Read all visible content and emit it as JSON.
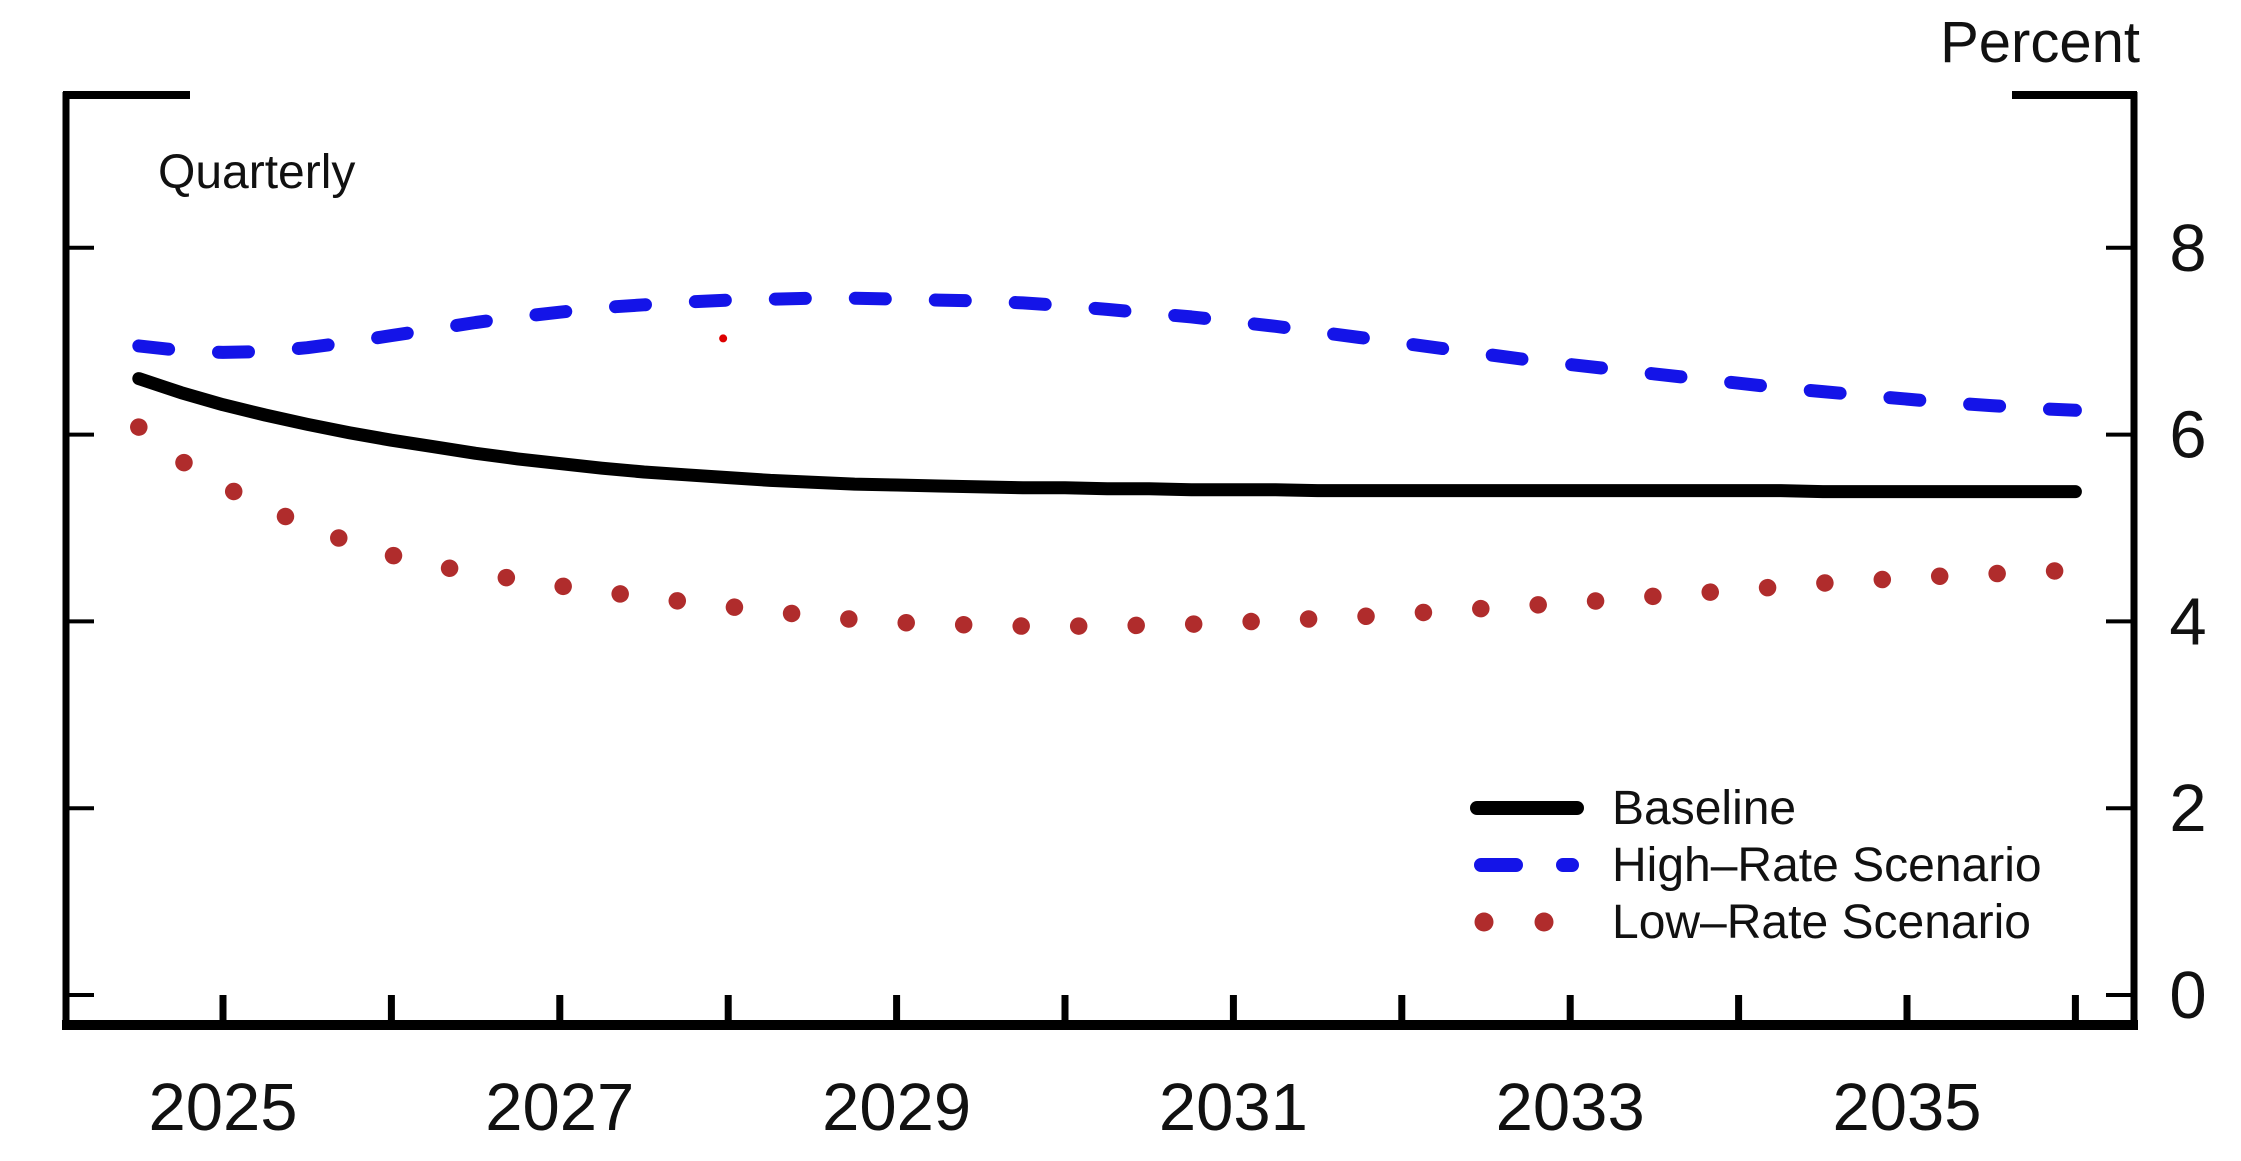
{
  "figure": {
    "unit_label": "Percent",
    "frequency_label": "Quarterly"
  },
  "legend": {
    "items": [
      {
        "label": "Baseline",
        "style": "solid",
        "color": "#000000"
      },
      {
        "label": "High–Rate Scenario",
        "style": "dashed",
        "color": "#1414e8"
      },
      {
        "label": "Low–Rate Scenario",
        "style": "dotted",
        "color": "#b02c2c"
      }
    ]
  },
  "colors": {
    "baseline": "#000000",
    "high_rate": "#1414e8",
    "low_rate": "#b02c2c",
    "axis": "#000000",
    "text": "#111111",
    "stray_mark": "#dd0000"
  },
  "chart_data": {
    "type": "line",
    "title": "",
    "unit_label": "Percent",
    "frequency_note": "Quarterly",
    "x_start": 2024.5,
    "x_step": 0.25,
    "x_axis": {
      "tick_years": [
        2025,
        2026,
        2027,
        2028,
        2029,
        2030,
        2031,
        2032,
        2033,
        2034,
        2035,
        2036
      ],
      "label_years": [
        "2025",
        "2027",
        "2029",
        "2031",
        "2033",
        "2035"
      ],
      "range": [
        2024.05,
        2036.35
      ]
    },
    "y_axis": {
      "ticks": [
        "8",
        "6",
        "4",
        "2",
        "0"
      ],
      "tick_values": [
        8,
        6,
        4,
        2,
        0
      ],
      "range": [
        -0.35,
        9.85
      ],
      "labels_side": "right",
      "grid": false
    },
    "legend_position": "bottom-right-inside",
    "series": [
      {
        "name": "Baseline",
        "color": "#000000",
        "line_style": "solid",
        "values": [
          6.6,
          6.45,
          6.32,
          6.21,
          6.11,
          6.02,
          5.94,
          5.87,
          5.8,
          5.74,
          5.69,
          5.64,
          5.6,
          5.57,
          5.54,
          5.51,
          5.49,
          5.47,
          5.46,
          5.45,
          5.44,
          5.43,
          5.43,
          5.42,
          5.42,
          5.41,
          5.41,
          5.41,
          5.4,
          5.4,
          5.4,
          5.4,
          5.4,
          5.4,
          5.4,
          5.4,
          5.4,
          5.4,
          5.4,
          5.4,
          5.39,
          5.39,
          5.39,
          5.39,
          5.39,
          5.39,
          5.39
        ]
      },
      {
        "name": "High–Rate Scenario",
        "color": "#1414e8",
        "line_style": "dashed",
        "values": [
          6.95,
          6.9,
          6.88,
          6.89,
          6.93,
          6.99,
          7.06,
          7.13,
          7.2,
          7.26,
          7.31,
          7.36,
          7.39,
          7.42,
          7.44,
          7.45,
          7.46,
          7.46,
          7.45,
          7.44,
          7.43,
          7.41,
          7.38,
          7.34,
          7.3,
          7.26,
          7.21,
          7.16,
          7.1,
          7.04,
          6.98,
          6.92,
          6.86,
          6.8,
          6.75,
          6.7,
          6.65,
          6.6,
          6.55,
          6.5,
          6.46,
          6.42,
          6.38,
          6.34,
          6.31,
          6.28,
          6.26
        ]
      },
      {
        "name": "Low–Rate Scenario",
        "color": "#b02c2c",
        "line_style": "dotted",
        "values": [
          6.08,
          5.72,
          5.45,
          5.22,
          5.02,
          4.85,
          4.71,
          4.6,
          4.52,
          4.45,
          4.38,
          4.32,
          4.26,
          4.21,
          4.16,
          4.11,
          4.06,
          4.02,
          3.99,
          3.97,
          3.96,
          3.95,
          3.95,
          3.95,
          3.96,
          3.97,
          3.99,
          4.01,
          4.03,
          4.05,
          4.08,
          4.11,
          4.14,
          4.17,
          4.2,
          4.23,
          4.27,
          4.3,
          4.34,
          4.37,
          4.41,
          4.44,
          4.46,
          4.49,
          4.51,
          4.53,
          4.55
        ]
      }
    ],
    "annotations": [
      {
        "name": "stray-red-mark",
        "x_year": 2027.97,
        "y_value": 7.03
      }
    ]
  }
}
